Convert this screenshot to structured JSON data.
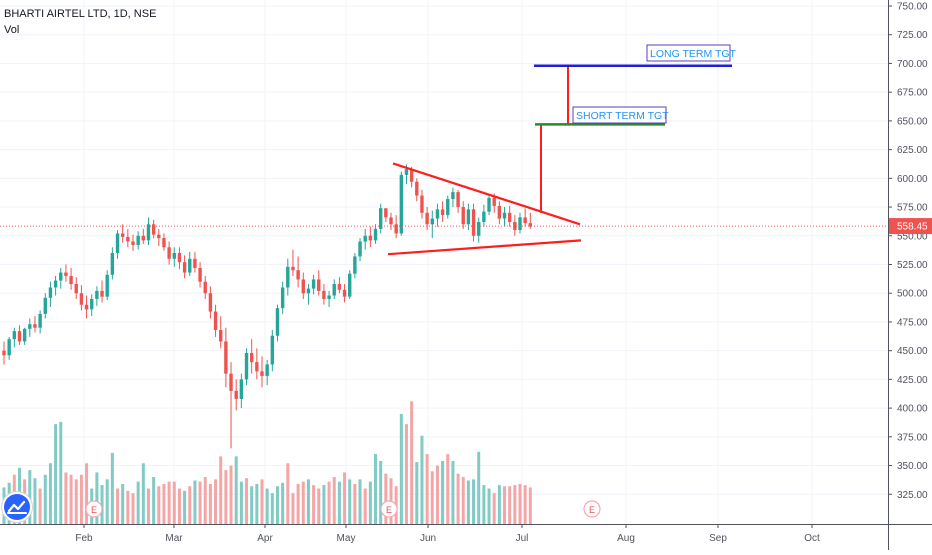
{
  "chart_data": {
    "type": "candlestick",
    "title": "BHARTI AIRTEL LTD, 1D, NSE",
    "subtitle": "Vol",
    "price_axis": {
      "min": 300,
      "max": 750,
      "ticks": [
        "750.00",
        "725.00",
        "700.00",
        "675.00",
        "650.00",
        "625.00",
        "600.00",
        "575.00",
        "550.00",
        "525.00",
        "500.00",
        "475.00",
        "450.00",
        "425.00",
        "400.00",
        "375.00",
        "350.00",
        "325.00"
      ]
    },
    "time_axis": {
      "ticks": [
        "Feb",
        "Mar",
        "Apr",
        "May",
        "Jun",
        "Jul",
        "Aug",
        "Sep",
        "Oct"
      ]
    },
    "last_price": {
      "value": 558.45,
      "label": "558.45"
    },
    "annotations": {
      "long_target": {
        "label": "LONG TERM TGT",
        "price": 698
      },
      "short_target": {
        "label": "SHORT TERM TGT",
        "price": 647
      },
      "earnings_marker": "E"
    },
    "pattern": "symmetrical triangle",
    "colors": {
      "up": "#26a69a",
      "down": "#ef5350",
      "vol_up": "#80cbc4",
      "vol_down": "#f4a6a6",
      "trendline": "#ff1e1e",
      "long_target_line": "#1f1fd6",
      "short_target_line": "#2a8a2a",
      "grid": "#f0f3fa",
      "axis_text": "#50535e",
      "price_tag": "#ef5350"
    },
    "ohlc": [
      [
        450,
        458,
        438,
        446
      ],
      [
        446,
        462,
        442,
        460
      ],
      [
        460,
        470,
        453,
        467
      ],
      [
        467,
        472,
        455,
        458
      ],
      [
        458,
        470,
        455,
        469
      ],
      [
        469,
        478,
        462,
        473
      ],
      [
        473,
        480,
        466,
        470
      ],
      [
        470,
        485,
        465,
        482
      ],
      [
        482,
        500,
        478,
        496
      ],
      [
        496,
        510,
        488,
        505
      ],
      [
        505,
        515,
        498,
        511
      ],
      [
        511,
        522,
        504,
        518
      ],
      [
        518,
        525,
        510,
        515
      ],
      [
        515,
        522,
        503,
        508
      ],
      [
        508,
        514,
        495,
        500
      ],
      [
        500,
        507,
        485,
        490
      ],
      [
        490,
        498,
        478,
        486
      ],
      [
        486,
        499,
        480,
        495
      ],
      [
        495,
        506,
        489,
        502
      ],
      [
        502,
        511,
        492,
        497
      ],
      [
        497,
        520,
        494,
        516
      ],
      [
        516,
        540,
        512,
        535
      ],
      [
        535,
        555,
        530,
        552
      ],
      [
        552,
        560,
        544,
        549
      ],
      [
        549,
        556,
        540,
        545
      ],
      [
        545,
        551,
        537,
        542
      ],
      [
        542,
        554,
        538,
        550
      ],
      [
        550,
        556,
        543,
        546
      ],
      [
        546,
        566,
        542,
        560
      ],
      [
        560,
        564,
        548,
        551
      ],
      [
        551,
        556,
        541,
        548
      ],
      [
        548,
        552,
        537,
        540
      ],
      [
        540,
        545,
        525,
        530
      ],
      [
        530,
        540,
        523,
        535
      ],
      [
        535,
        540,
        521,
        527
      ],
      [
        527,
        533,
        513,
        518
      ],
      [
        518,
        536,
        515,
        530
      ],
      [
        530,
        536,
        518,
        522
      ],
      [
        522,
        527,
        505,
        510
      ],
      [
        510,
        515,
        495,
        500
      ],
      [
        500,
        506,
        478,
        484
      ],
      [
        484,
        490,
        462,
        468
      ],
      [
        468,
        480,
        452,
        458
      ],
      [
        458,
        470,
        418,
        430
      ],
      [
        430,
        440,
        365,
        415
      ],
      [
        415,
        425,
        398,
        408
      ],
      [
        408,
        430,
        400,
        425
      ],
      [
        425,
        452,
        420,
        448
      ],
      [
        448,
        460,
        430,
        440
      ],
      [
        440,
        452,
        425,
        432
      ],
      [
        432,
        445,
        418,
        428
      ],
      [
        428,
        442,
        420,
        438
      ],
      [
        438,
        468,
        432,
        463
      ],
      [
        463,
        490,
        458,
        487
      ],
      [
        487,
        510,
        482,
        505
      ],
      [
        505,
        530,
        498,
        523
      ],
      [
        523,
        538,
        515,
        520
      ],
      [
        520,
        532,
        505,
        512
      ],
      [
        512,
        518,
        495,
        500
      ],
      [
        500,
        508,
        490,
        504
      ],
      [
        504,
        516,
        499,
        512
      ],
      [
        512,
        520,
        498,
        502
      ],
      [
        502,
        508,
        490,
        495
      ],
      [
        495,
        502,
        488,
        498
      ],
      [
        498,
        512,
        495,
        508
      ],
      [
        508,
        514,
        500,
        503
      ],
      [
        503,
        508,
        492,
        497
      ],
      [
        497,
        520,
        495,
        517
      ],
      [
        517,
        535,
        513,
        532
      ],
      [
        532,
        548,
        528,
        545
      ],
      [
        545,
        556,
        538,
        550
      ],
      [
        550,
        558,
        540,
        546
      ],
      [
        546,
        560,
        543,
        556
      ],
      [
        556,
        578,
        552,
        574
      ],
      [
        574,
        572,
        562,
        566
      ],
      [
        566,
        570,
        555,
        560
      ],
      [
        560,
        568,
        548,
        552
      ],
      [
        552,
        606,
        550,
        603
      ],
      [
        603,
        612,
        595,
        608
      ],
      [
        608,
        610,
        592,
        597
      ],
      [
        597,
        600,
        580,
        585
      ],
      [
        585,
        590,
        565,
        570
      ],
      [
        570,
        575,
        555,
        560
      ],
      [
        560,
        572,
        548,
        565
      ],
      [
        565,
        578,
        558,
        573
      ],
      [
        573,
        580,
        562,
        568
      ],
      [
        568,
        585,
        565,
        582
      ],
      [
        582,
        592,
        575,
        588
      ],
      [
        588,
        590,
        570,
        575
      ],
      [
        575,
        580,
        556,
        560
      ],
      [
        560,
        578,
        555,
        573
      ],
      [
        573,
        578,
        545,
        550
      ],
      [
        550,
        566,
        544,
        562
      ],
      [
        562,
        577,
        558,
        571
      ],
      [
        571,
        586,
        568,
        583
      ],
      [
        583,
        587,
        570,
        576
      ],
      [
        576,
        580,
        560,
        565
      ],
      [
        565,
        575,
        558,
        570
      ],
      [
        570,
        576,
        558,
        562
      ],
      [
        562,
        568,
        550,
        555
      ],
      [
        555,
        570,
        552,
        566
      ],
      [
        566,
        574,
        558,
        561
      ],
      [
        561,
        570,
        556,
        558
      ]
    ],
    "volume": [
      [
        331,
        1
      ],
      [
        335,
        1
      ],
      [
        342,
        0
      ],
      [
        348,
        1
      ],
      [
        338,
        0
      ],
      [
        346,
        1
      ],
      [
        339,
        1
      ],
      [
        330,
        0
      ],
      [
        342,
        1
      ],
      [
        352,
        1
      ],
      [
        386,
        1
      ],
      [
        388,
        1
      ],
      [
        344,
        0
      ],
      [
        342,
        0
      ],
      [
        338,
        0
      ],
      [
        342,
        0
      ],
      [
        352,
        0
      ],
      [
        330,
        1
      ],
      [
        344,
        1
      ],
      [
        333,
        1
      ],
      [
        338,
        1
      ],
      [
        361,
        1
      ],
      [
        330,
        0
      ],
      [
        334,
        1
      ],
      [
        328,
        0
      ],
      [
        326,
        0
      ],
      [
        336,
        1
      ],
      [
        352,
        1
      ],
      [
        330,
        0
      ],
      [
        340,
        1
      ],
      [
        332,
        0
      ],
      [
        334,
        0
      ],
      [
        336,
        0
      ],
      [
        336,
        0
      ],
      [
        330,
        0
      ],
      [
        328,
        1
      ],
      [
        332,
        0
      ],
      [
        337,
        1
      ],
      [
        336,
        0
      ],
      [
        340,
        0
      ],
      [
        334,
        0
      ],
      [
        338,
        0
      ],
      [
        358,
        0
      ],
      [
        346,
        0
      ],
      [
        350,
        0
      ],
      [
        358,
        1
      ],
      [
        336,
        1
      ],
      [
        339,
        0
      ],
      [
        332,
        1
      ],
      [
        334,
        1
      ],
      [
        338,
        0
      ],
      [
        330,
        1
      ],
      [
        326,
        1
      ],
      [
        332,
        1
      ],
      [
        335,
        1
      ],
      [
        352,
        0
      ],
      [
        326,
        0
      ],
      [
        334,
        0
      ],
      [
        336,
        0
      ],
      [
        338,
        1
      ],
      [
        333,
        0
      ],
      [
        330,
        0
      ],
      [
        333,
        1
      ],
      [
        336,
        0
      ],
      [
        340,
        0
      ],
      [
        336,
        1
      ],
      [
        344,
        0
      ],
      [
        338,
        1
      ],
      [
        334,
        0
      ],
      [
        338,
        1
      ],
      [
        330,
        0
      ],
      [
        336,
        1
      ],
      [
        360,
        1
      ],
      [
        354,
        1
      ],
      [
        343,
        0
      ],
      [
        339,
        0
      ],
      [
        332,
        0
      ],
      [
        395,
        1
      ],
      [
        386,
        0
      ],
      [
        406,
        0
      ],
      [
        353,
        1
      ],
      [
        376,
        1
      ],
      [
        360,
        0
      ],
      [
        345,
        0
      ],
      [
        350,
        0
      ],
      [
        354,
        1
      ],
      [
        360,
        0
      ],
      [
        354,
        1
      ],
      [
        343,
        0
      ],
      [
        340,
        0
      ],
      [
        337,
        1
      ],
      [
        338,
        1
      ],
      [
        362,
        1
      ],
      [
        333,
        1
      ],
      [
        330,
        1
      ],
      [
        326,
        0
      ],
      [
        333,
        1
      ],
      [
        332,
        0
      ],
      [
        332,
        0
      ],
      [
        333,
        0
      ],
      [
        334,
        0
      ],
      [
        333,
        0
      ],
      [
        331,
        0
      ]
    ],
    "earnings_bars": [
      27,
      44,
      66
    ]
  }
}
